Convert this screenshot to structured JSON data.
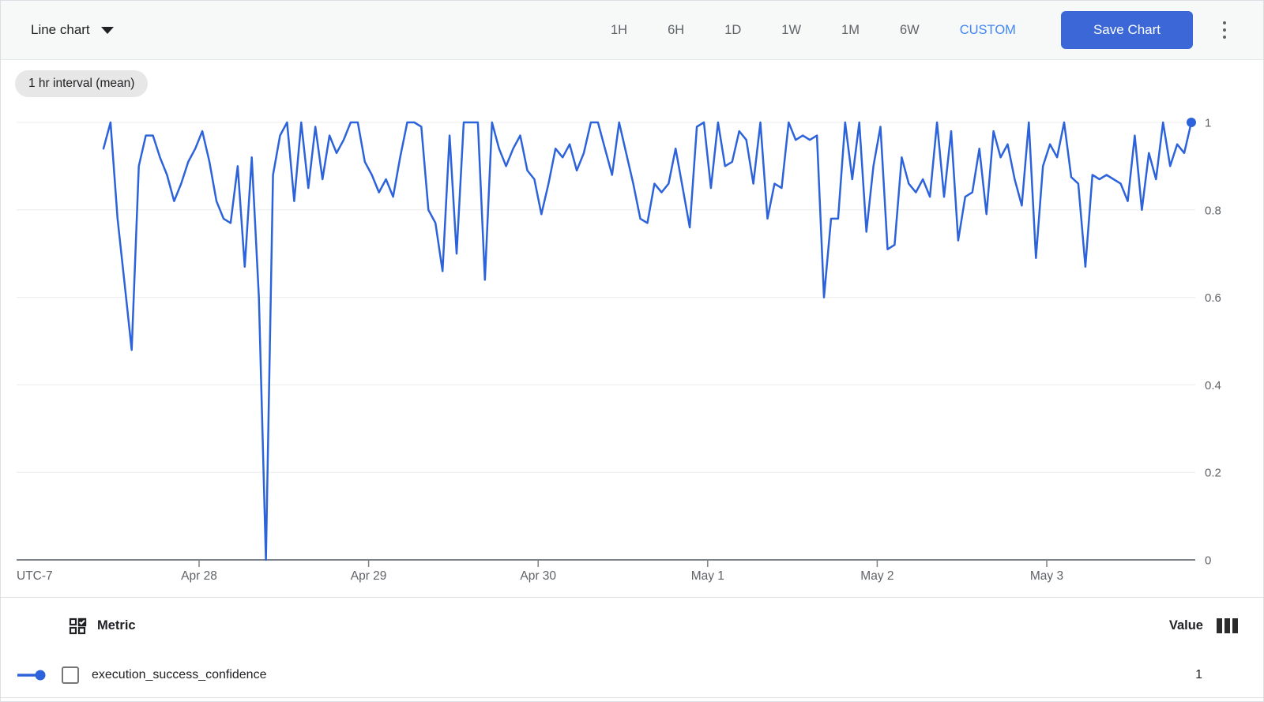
{
  "topbar": {
    "chart_type_label": "Line chart",
    "time_ranges": [
      "1H",
      "6H",
      "1D",
      "1W",
      "1M",
      "6W"
    ],
    "custom_label": "CUSTOM",
    "save_button_label": "Save Chart"
  },
  "chip_label": "1 hr interval (mean)",
  "colors": {
    "series_blue": "#2d63da",
    "custom_link_blue": "#4285f4",
    "save_button_bg": "#3c67d6",
    "grid_line": "#ececec",
    "axis_line": "#7d8288",
    "axis_label_gray": "#5f6368",
    "topbar_bg": "#f7f8f8",
    "chip_bg": "#e7e7e7"
  },
  "chart_data": {
    "type": "line",
    "title": "",
    "xlabel": "",
    "ylabel": "",
    "timezone_label": "UTC-7",
    "x_ticks": [
      "Apr 28",
      "Apr 29",
      "Apr 30",
      "May 1",
      "May 2",
      "May 3"
    ],
    "y_ticks": [
      "0",
      "0.2",
      "0.4",
      "0.6",
      "0.8",
      "1"
    ],
    "ylim": [
      0,
      1
    ],
    "grid": "horizontal",
    "legend_position": "table-below",
    "interval": "1 hr interval (mean)",
    "samples_per_day": 24,
    "x_start_day_offset": -0.564,
    "end_dot": true,
    "end_dot_value": 1,
    "series": [
      {
        "name": "execution_success_confidence",
        "color": "#2d63da",
        "values": [
          0.94,
          1.0,
          0.78,
          0.63,
          0.48,
          0.9,
          0.97,
          0.97,
          0.92,
          0.88,
          0.82,
          0.86,
          0.91,
          0.94,
          0.98,
          0.91,
          0.82,
          0.78,
          0.77,
          0.9,
          0.67,
          0.92,
          0.6,
          0.0,
          0.88,
          0.97,
          1.0,
          0.82,
          1.0,
          0.85,
          0.99,
          0.87,
          0.97,
          0.93,
          0.96,
          1.0,
          1.0,
          0.91,
          0.88,
          0.84,
          0.87,
          0.83,
          0.92,
          1.0,
          1.0,
          0.99,
          0.8,
          0.77,
          0.66,
          0.97,
          0.7,
          1.0,
          1.0,
          1.0,
          0.64,
          1.0,
          0.94,
          0.9,
          0.94,
          0.97,
          0.89,
          0.87,
          0.79,
          0.86,
          0.94,
          0.92,
          0.95,
          0.89,
          0.93,
          1.0,
          1.0,
          0.94,
          0.88,
          1.0,
          0.93,
          0.86,
          0.78,
          0.77,
          0.86,
          0.84,
          0.86,
          0.94,
          0.85,
          0.76,
          0.99,
          1.0,
          0.85,
          1.0,
          0.9,
          0.91,
          0.98,
          0.96,
          0.86,
          1.0,
          0.78,
          0.86,
          0.85,
          1.0,
          0.96,
          0.97,
          0.96,
          0.97,
          0.6,
          0.78,
          0.78,
          1.0,
          0.87,
          1.0,
          0.75,
          0.9,
          0.99,
          0.71,
          0.72,
          0.92,
          0.86,
          0.84,
          0.87,
          0.83,
          1.0,
          0.83,
          0.98,
          0.73,
          0.83,
          0.84,
          0.94,
          0.79,
          0.98,
          0.92,
          0.95,
          0.87,
          0.81,
          1.0,
          0.69,
          0.9,
          0.95,
          0.92,
          1.0,
          0.875,
          0.86,
          0.67,
          0.88,
          0.87,
          0.88,
          0.87,
          0.86,
          0.82,
          0.97,
          0.8,
          0.93,
          0.87,
          1.0,
          0.9,
          0.95,
          0.93,
          1.0
        ]
      }
    ]
  },
  "table": {
    "metric_header": "Metric",
    "value_header": "Value",
    "rows": [
      {
        "metric": "execution_success_confidence",
        "value": "1"
      }
    ]
  }
}
